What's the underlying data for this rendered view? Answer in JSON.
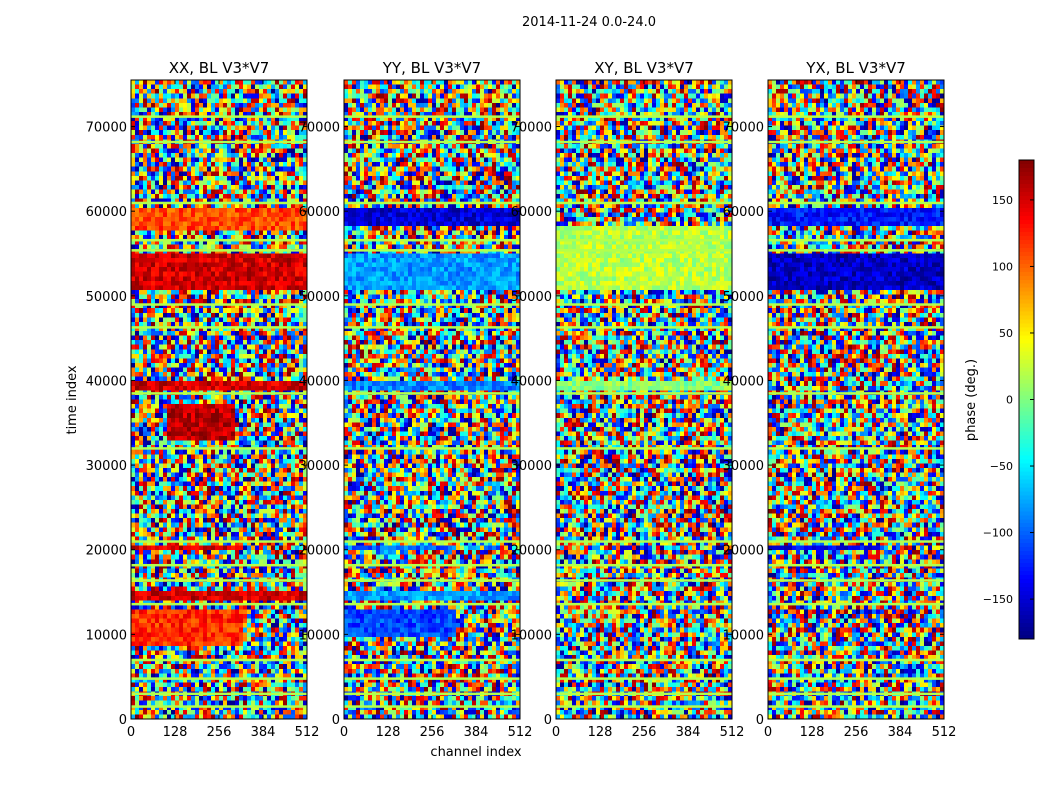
{
  "chart_data": {
    "type": "heatmap",
    "suptitle": "2014-11-24 0.0-24.0",
    "xlabel": "channel index",
    "ylabel": "time index",
    "x_ticks": [
      0,
      128,
      256,
      384,
      512
    ],
    "y_ticks": [
      0,
      10000,
      20000,
      30000,
      40000,
      50000,
      60000,
      70000
    ],
    "xlim": [
      0,
      512
    ],
    "ylim": [
      0,
      75500
    ],
    "colormap": "jet",
    "colorbar": {
      "label": "phase (deg.)",
      "range": [
        -180,
        180
      ],
      "ticks": [
        -150,
        -100,
        -50,
        0,
        50,
        100,
        150
      ],
      "tick_labels": [
        "−150",
        "−100",
        "−50",
        "0",
        "50",
        "100",
        "150"
      ]
    },
    "panels": [
      {
        "title": "XX, BL V3*V7",
        "pol": "XX",
        "bands": [
          {
            "y0": 50800,
            "y1": 55000,
            "x0": 0,
            "x1": 512,
            "phase": 150
          },
          {
            "y0": 57500,
            "y1": 60500,
            "x0": 0,
            "x1": 512,
            "phase": 110
          },
          {
            "y0": 33000,
            "y1": 37000,
            "x0": 100,
            "x1": 300,
            "phase": 160
          },
          {
            "y0": 19700,
            "y1": 20300,
            "x0": 0,
            "x1": 330,
            "phase": 150
          },
          {
            "y0": 14000,
            "y1": 15000,
            "x0": 0,
            "x1": 512,
            "phase": 150
          },
          {
            "y0": 8500,
            "y1": 13000,
            "x0": 0,
            "x1": 320,
            "phase": 120
          },
          {
            "y0": 39000,
            "y1": 39800,
            "x0": 0,
            "x1": 512,
            "phase": 150
          }
        ]
      },
      {
        "title": "YY, BL V3*V7",
        "pol": "YY",
        "bands": [
          {
            "y0": 58500,
            "y1": 60500,
            "x0": 0,
            "x1": 512,
            "phase": -150
          },
          {
            "y0": 50800,
            "y1": 55000,
            "x0": 0,
            "x1": 512,
            "phase": -80
          },
          {
            "y0": 19700,
            "y1": 20300,
            "x0": 0,
            "x1": 330,
            "phase": -100
          },
          {
            "y0": 14000,
            "y1": 15000,
            "x0": 0,
            "x1": 512,
            "phase": -80
          },
          {
            "y0": 9500,
            "y1": 13000,
            "x0": 0,
            "x1": 320,
            "phase": -110
          },
          {
            "y0": 39000,
            "y1": 39800,
            "x0": 0,
            "x1": 512,
            "phase": -90
          }
        ]
      },
      {
        "title": "XY, BL V3*V7",
        "pol": "XY",
        "bands": [
          {
            "y0": 50800,
            "y1": 58000,
            "x0": 0,
            "x1": 512,
            "phase": 20
          },
          {
            "y0": 39000,
            "y1": 39800,
            "x0": 0,
            "x1": 512,
            "phase": 0
          }
        ]
      },
      {
        "title": "YX, BL V3*V7",
        "pol": "YX",
        "bands": [
          {
            "y0": 50800,
            "y1": 55000,
            "x0": 0,
            "x1": 512,
            "phase": -155
          },
          {
            "y0": 58500,
            "y1": 60200,
            "x0": 0,
            "x1": 512,
            "phase": -130
          },
          {
            "y0": 19700,
            "y1": 20300,
            "x0": 0,
            "x1": 330,
            "phase": -140
          }
        ]
      }
    ],
    "flagged_rows": [
      1500,
      3000,
      4800,
      7000,
      13600,
      16400,
      18200,
      21000,
      32000,
      38500,
      46300,
      49000,
      55400,
      56600,
      61000,
      68200,
      71200
    ]
  }
}
